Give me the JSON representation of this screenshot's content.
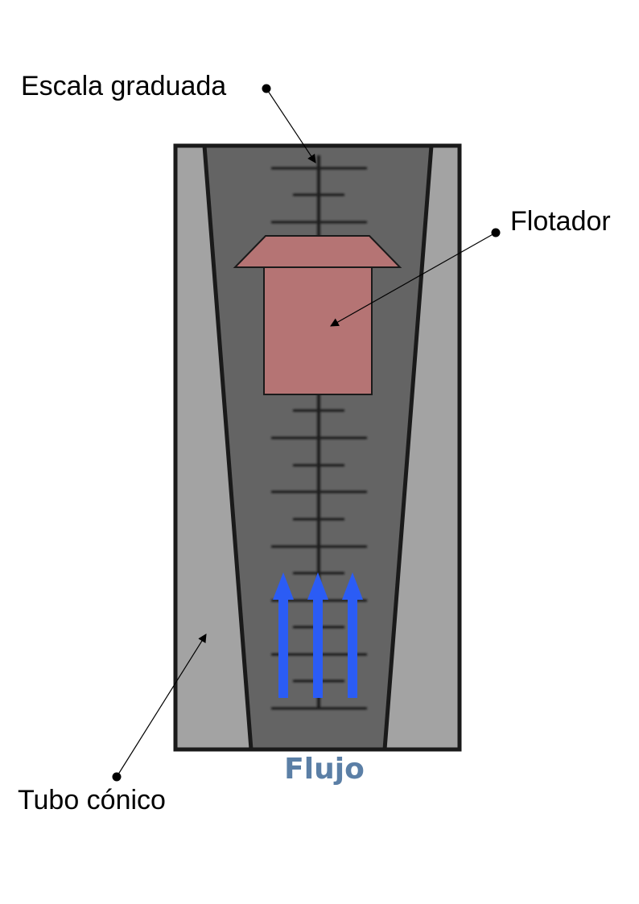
{
  "labels": {
    "scale": "Escala graduada",
    "float": "Flotador",
    "tube": "Tubo cónico",
    "flow": "Flujo"
  },
  "colors": {
    "outer_frame": "#1a1a1a",
    "tube_wall": "#a3a3a3",
    "tube_bore": "#646464",
    "scale_marks": "#1e1e1e",
    "float_body": "#b57474",
    "float_outline": "#1a1a1a",
    "flow_arrows": "#2b5cf5",
    "flow_text": "#5b7fa6",
    "leader_lines": "#000000"
  },
  "icons": {
    "flow_arrows": "arrow-up-icon"
  }
}
